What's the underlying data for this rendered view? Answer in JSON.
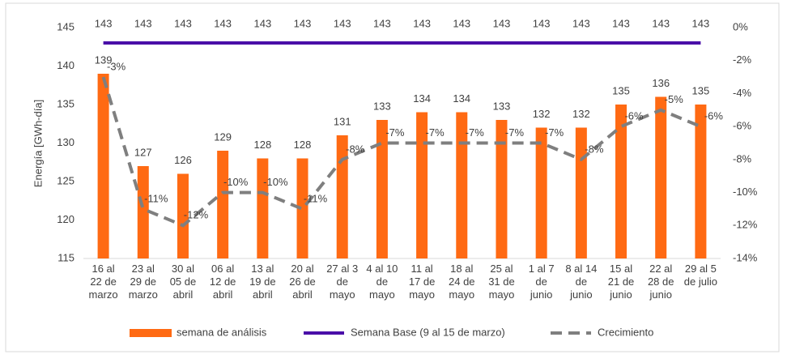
{
  "chart_data": {
    "type": "bar-line",
    "y_label": "Energía [GWh-día]",
    "categories": [
      "16 al\n22 de\nmarzo",
      "23 al\n29 de\nmarzo",
      "30 al\n05 de\nabril",
      "06 al\n12 de\nabril",
      "13 al\n19 de\nabril",
      "20 al\n26 de\nabril",
      "27 al 3\nde\nmayo",
      "4 al 10\nde\nmayo",
      "11 al\n17 de\nmayo",
      "18 al\n24 de\nmayo",
      "25 al\n31 de\nmayo",
      "1 al 7\nde\njunio",
      "8 al 14\nde\njunio",
      "15 al\n21 de\njunio",
      "22 al\n28 de\njunio",
      "29 al 5\nde julio"
    ],
    "ylim": [
      115,
      145
    ],
    "yticks": [
      115,
      120,
      125,
      130,
      135,
      140,
      145
    ],
    "y2lim": [
      -14,
      0
    ],
    "y2ticks": [
      {
        "value": -14,
        "label": "-14%"
      },
      {
        "value": -12,
        "label": "-12%"
      },
      {
        "value": -10,
        "label": "-10%"
      },
      {
        "value": -8,
        "label": "-8%"
      },
      {
        "value": -6,
        "label": "-6%"
      },
      {
        "value": -4,
        "label": "-4%"
      },
      {
        "value": -2,
        "label": "-2%"
      },
      {
        "value": 0,
        "label": "0%"
      }
    ],
    "series": [
      {
        "name": "semana de análisis",
        "type": "bar",
        "color": "#ff6a13",
        "values": [
          139,
          127,
          126,
          129,
          128,
          128,
          131,
          133,
          134,
          134,
          133,
          132,
          132,
          135,
          136,
          135
        ]
      },
      {
        "name": "Semana Base (9 al 15 de marzo)",
        "type": "line",
        "color": "#4a0fa8",
        "values": [
          143,
          143,
          143,
          143,
          143,
          143,
          143,
          143,
          143,
          143,
          143,
          143,
          143,
          143,
          143,
          143
        ]
      },
      {
        "name": "Crecimiento",
        "type": "dashed",
        "axis": "y2",
        "color": "#7f7f7f",
        "values": [
          -3,
          -11,
          -12,
          -10,
          -10,
          -11,
          -8,
          -7,
          -7,
          -7,
          -7,
          -7,
          -8,
          -6,
          -5,
          -6
        ],
        "value_labels": [
          "-3%",
          "-11%",
          "-12%",
          "-10%",
          "-10%",
          "-11%",
          "-8%",
          "-7%",
          "-7%",
          "-7%",
          "-7%",
          "-7%",
          "-8%",
          "-6%",
          "-5%",
          "-6%"
        ]
      }
    ]
  }
}
